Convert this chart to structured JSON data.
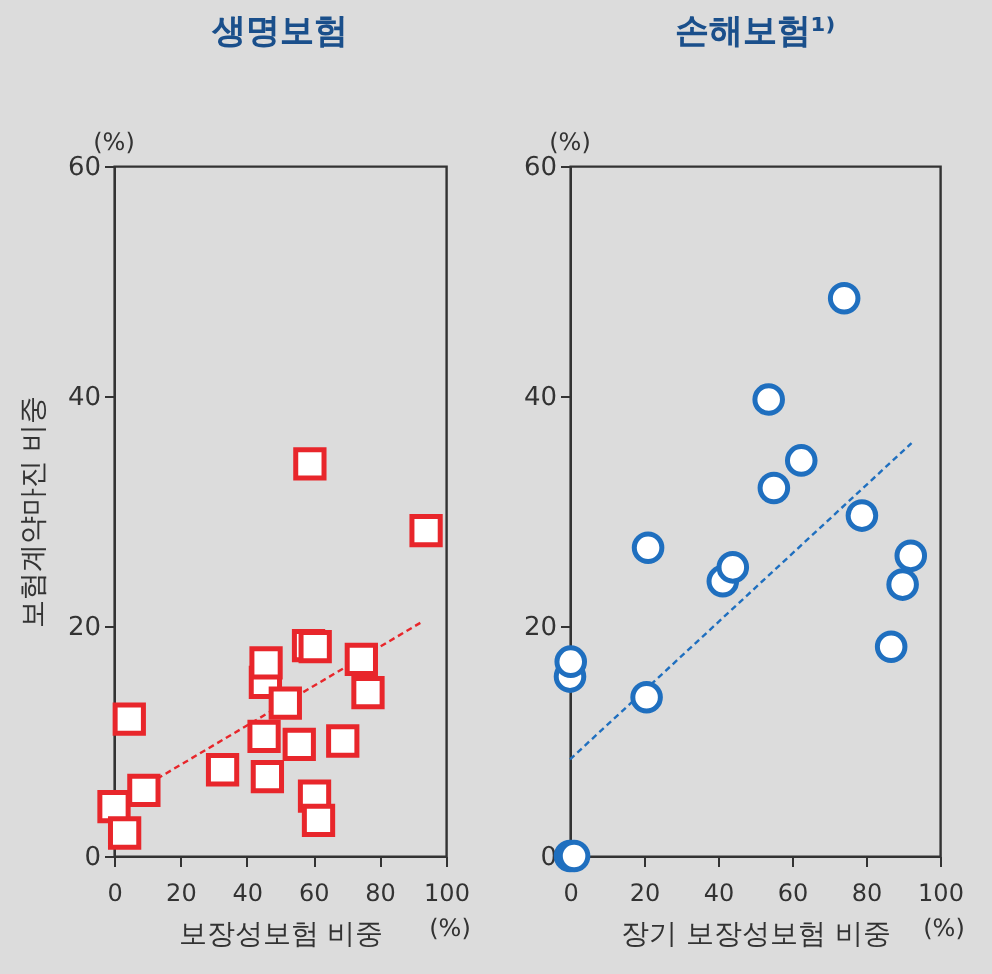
{
  "chart_data": [
    {
      "type": "scatter",
      "title": "생명보험",
      "xlabel": "보장성보험 비중",
      "ylabel": "보험계약마진 비중",
      "annotations": [
        "(%)",
        "(%)"
      ],
      "xlim": [
        0,
        100
      ],
      "xticks": [
        0,
        20,
        40,
        60,
        80,
        100
      ],
      "ylim": [
        0,
        60
      ],
      "yticks": [
        0,
        20,
        40,
        60
      ],
      "grid": false,
      "series": [
        {
          "color": "#e8262b",
          "marker": "square",
          "x": [
            0,
            3.2,
            4.6,
            9.0,
            32.7,
            45.2,
            46.2,
            45.6,
            45.8,
            51.6,
            55.8,
            59.0,
            58.6,
            60.6,
            60.4,
            61.6,
            68.9,
            74.5,
            76.5,
            94.0
          ],
          "values": [
            4.3,
            2.0,
            11.9,
            5.7,
            7.5,
            10.4,
            6.9,
            15.1,
            16.8,
            13.3,
            9.7,
            34.1,
            18.3,
            18.2,
            5.2,
            3.1,
            10.0,
            17.1,
            14.2,
            28.3
          ]
        },
        {
          "type": "line",
          "color": "#e8262b",
          "line_style": "dashed",
          "x": [
            0,
            93
          ],
          "values": [
            4.5,
            20.4
          ]
        }
      ]
    },
    {
      "type": "scatter",
      "title": "손해보험¹⁾",
      "xlabel": "장기 보장성보험 비중",
      "annotations": [
        "(%)",
        "(%)"
      ],
      "xlim": [
        0,
        100
      ],
      "xticks": [
        0,
        20,
        40,
        60,
        80,
        100
      ],
      "ylim": [
        0,
        60
      ],
      "yticks": [
        0,
        20,
        40,
        60
      ],
      "grid": false,
      "series": [
        {
          "color": "#1f6fbf",
          "marker": "circle",
          "x": [
            0,
            1.1,
            0,
            0.2,
            21.1,
            20.7,
            41.3,
            44.0,
            53.7,
            55.1,
            62.5,
            74.1,
            78.9,
            86.8,
            89.9,
            92.1
          ],
          "values": [
            0,
            0,
            15.6,
            16.9,
            26.8,
            13.8,
            23.9,
            25.1,
            39.7,
            32.0,
            34.4,
            48.5,
            29.6,
            18.2,
            23.6,
            26.1
          ]
        },
        {
          "type": "line",
          "color": "#1f6fbf",
          "line_style": "dashed",
          "x": [
            0,
            92.3
          ],
          "values": [
            8.4,
            35.9
          ]
        }
      ]
    }
  ]
}
